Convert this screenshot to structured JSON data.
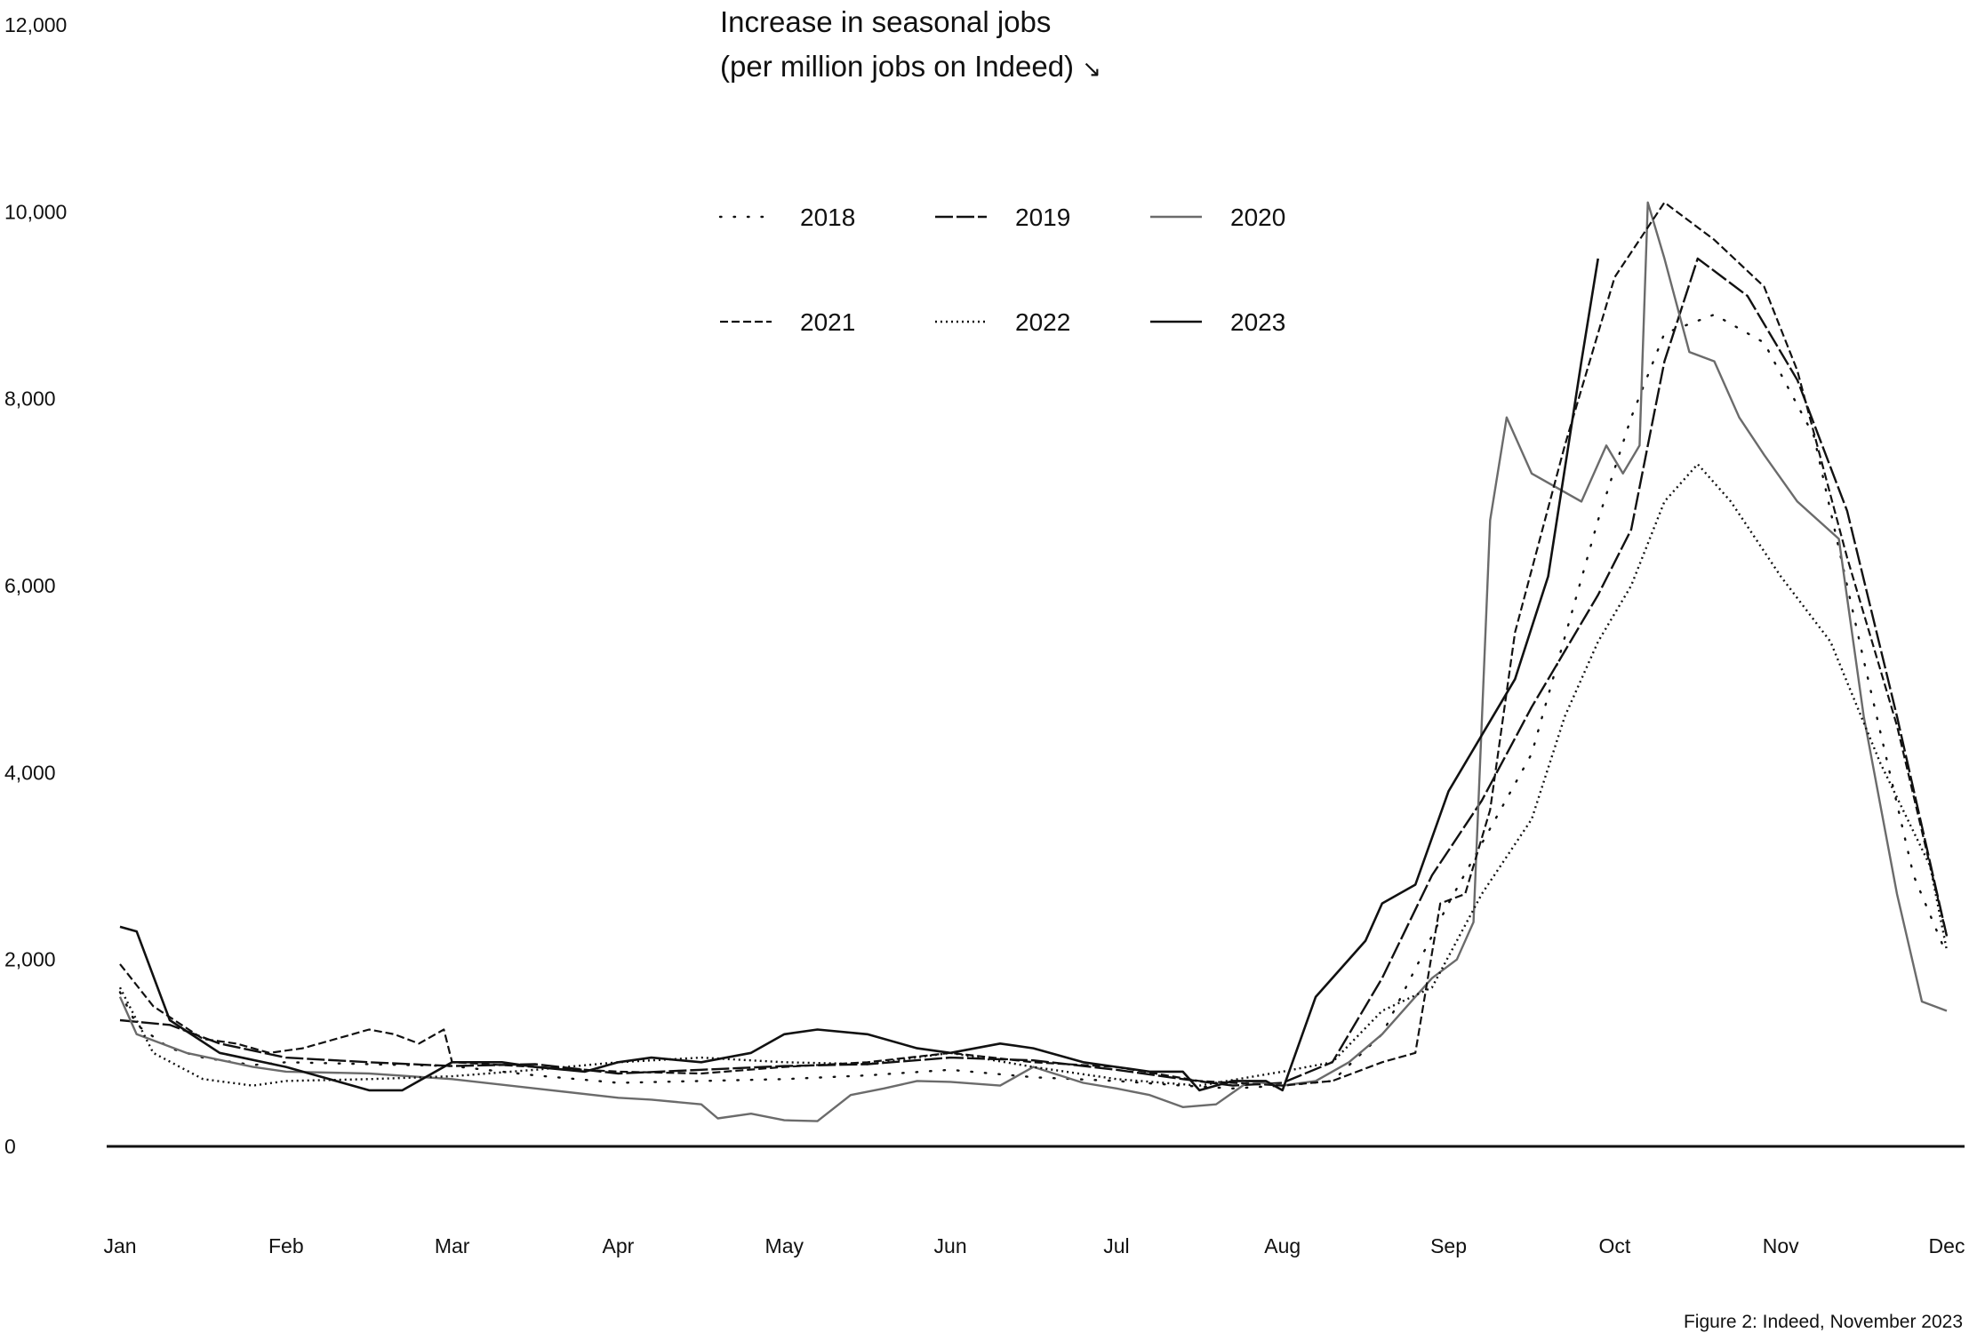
{
  "chart_data": {
    "type": "line",
    "title_line1": "Increase in seasonal jobs",
    "title_line2": "(per million jobs on Indeed)",
    "title_arrow": "↘",
    "caption": "Figure 2: Indeed, November 2023",
    "xlabel": "",
    "ylabel": "",
    "ylim": [
      0,
      12000
    ],
    "yticks": [
      "0",
      "2,000",
      "4,000",
      "6,000",
      "8,000",
      "10,000",
      "12,000"
    ],
    "ytick_values": [
      0,
      2000,
      4000,
      6000,
      8000,
      10000,
      12000
    ],
    "xlim": [
      0,
      11
    ],
    "xticks": [
      "Jan",
      "Feb",
      "Mar",
      "Apr",
      "May",
      "Jun",
      "Jul",
      "Aug",
      "Sep",
      "Oct",
      "Nov",
      "Dec"
    ],
    "xtick_values": [
      0,
      1,
      2,
      3,
      4,
      5,
      6,
      7,
      8,
      9,
      10,
      11
    ],
    "grid": false,
    "legend_placement": "top-center",
    "series": [
      {
        "name": "2018",
        "style": "sparse-dots",
        "color": "#111111",
        "x": [
          0,
          0.1,
          0.3,
          0.5,
          0.8,
          1.0,
          1.5,
          2.0,
          2.5,
          3.0,
          3.5,
          4.0,
          4.5,
          5.0,
          5.5,
          6.0,
          6.4,
          6.7,
          7.0,
          7.3,
          7.6,
          8.0,
          8.5,
          8.9,
          9.1,
          9.3,
          9.6,
          9.9,
          10.2,
          10.5,
          10.8,
          11.0
        ],
        "y": [
          1650,
          1300,
          1050,
          950,
          870,
          900,
          880,
          860,
          760,
          680,
          700,
          720,
          760,
          820,
          740,
          700,
          650,
          620,
          650,
          700,
          1200,
          2600,
          4200,
          6700,
          7800,
          8700,
          8900,
          8600,
          7600,
          5200,
          2900,
          2050
        ]
      },
      {
        "name": "2019",
        "style": "long-dash",
        "color": "#111111",
        "x": [
          0,
          0.3,
          0.6,
          1.0,
          1.5,
          2.0,
          2.5,
          3.0,
          3.5,
          4.0,
          4.5,
          5.0,
          5.5,
          6.0,
          6.4,
          6.7,
          7.0,
          7.3,
          7.6,
          7.9,
          8.2,
          8.5,
          8.9,
          9.1,
          9.3,
          9.5,
          9.8,
          10.1,
          10.4,
          10.7,
          11.0
        ],
        "y": [
          1350,
          1300,
          1100,
          950,
          900,
          860,
          880,
          780,
          820,
          860,
          880,
          950,
          920,
          820,
          720,
          650,
          680,
          900,
          1800,
          2900,
          3700,
          4700,
          5900,
          6600,
          8400,
          9500,
          9100,
          8200,
          6800,
          4600,
          2250
        ]
      },
      {
        "name": "2020",
        "style": "solid-gray",
        "color": "#6b6b6b",
        "x": [
          0,
          0.1,
          0.4,
          0.8,
          1.0,
          1.5,
          2.0,
          2.5,
          3.0,
          3.2,
          3.5,
          3.6,
          3.8,
          4.0,
          4.2,
          4.4,
          4.6,
          4.8,
          5.0,
          5.3,
          5.5,
          5.8,
          6.0,
          6.2,
          6.4,
          6.6,
          6.8,
          7.0,
          7.2,
          7.4,
          7.6,
          7.8,
          7.9,
          8.05,
          8.15,
          8.25,
          8.35,
          8.5,
          8.8,
          8.95,
          9.05,
          9.15,
          9.2,
          9.3,
          9.45,
          9.6,
          9.75,
          9.9,
          10.1,
          10.35,
          10.5,
          10.7,
          10.85,
          11.0
        ],
        "y": [
          1600,
          1200,
          1000,
          850,
          800,
          780,
          720,
          620,
          520,
          500,
          450,
          300,
          350,
          280,
          270,
          550,
          620,
          700,
          690,
          650,
          850,
          680,
          620,
          550,
          420,
          450,
          700,
          650,
          700,
          900,
          1200,
          1600,
          1800,
          2000,
          2400,
          6700,
          7800,
          7200,
          6900,
          7500,
          7200,
          7500,
          10100,
          9500,
          8500,
          8400,
          7800,
          7400,
          6900,
          6500,
          4600,
          2700,
          1550,
          1450
        ]
      },
      {
        "name": "2021",
        "style": "dash",
        "color": "#111111",
        "x": [
          0,
          0.2,
          0.5,
          0.7,
          0.9,
          1.1,
          1.3,
          1.5,
          1.65,
          1.8,
          1.95,
          2.0,
          2.5,
          3.0,
          3.5,
          4.0,
          4.5,
          5.0,
          5.5,
          6.0,
          6.5,
          7.0,
          7.3,
          7.6,
          7.8,
          7.95,
          8.1,
          8.25,
          8.4,
          8.7,
          9.0,
          9.3,
          9.6,
          9.9,
          10.1,
          10.4,
          10.7,
          11.0
        ],
        "y": [
          1950,
          1500,
          1150,
          1100,
          1000,
          1050,
          1150,
          1250,
          1200,
          1100,
          1250,
          900,
          850,
          800,
          780,
          850,
          900,
          1000,
          900,
          850,
          700,
          650,
          700,
          900,
          1000,
          2600,
          2700,
          3600,
          5500,
          7500,
          9300,
          10100,
          9700,
          9200,
          8300,
          6300,
          4500,
          2250
        ]
      },
      {
        "name": "2022",
        "style": "dotted",
        "color": "#111111",
        "x": [
          0,
          0.2,
          0.5,
          0.8,
          1.0,
          1.5,
          2.0,
          2.5,
          3.0,
          3.5,
          4.0,
          4.5,
          5.0,
          5.5,
          6.0,
          6.5,
          7.0,
          7.3,
          7.6,
          7.9,
          8.2,
          8.5,
          8.7,
          8.9,
          9.1,
          9.3,
          9.5,
          9.7,
          10.0,
          10.3,
          10.6,
          10.9,
          11.0
        ],
        "y": [
          1700,
          1000,
          720,
          650,
          700,
          720,
          750,
          820,
          900,
          950,
          900,
          880,
          1000,
          850,
          720,
          650,
          800,
          900,
          1450,
          1700,
          2700,
          3500,
          4600,
          5400,
          6000,
          6900,
          7300,
          6900,
          6100,
          5400,
          4100,
          3000,
          2100
        ]
      },
      {
        "name": "2023",
        "style": "solid",
        "color": "#111111",
        "x": [
          0,
          0.1,
          0.3,
          0.6,
          1.0,
          1.2,
          1.5,
          1.7,
          2.0,
          2.3,
          2.5,
          2.8,
          3.0,
          3.2,
          3.5,
          3.8,
          4.0,
          4.2,
          4.5,
          4.8,
          5.0,
          5.3,
          5.5,
          5.8,
          6.0,
          6.2,
          6.4,
          6.5,
          6.7,
          6.9,
          7.0,
          7.2,
          7.5,
          7.6,
          7.8,
          8.0,
          8.2,
          8.4,
          8.6,
          8.8,
          8.9
        ],
        "y": [
          2350,
          2300,
          1350,
          1000,
          850,
          750,
          600,
          600,
          900,
          900,
          850,
          800,
          900,
          950,
          900,
          1000,
          1200,
          1250,
          1200,
          1050,
          1000,
          1100,
          1050,
          900,
          850,
          800,
          800,
          600,
          700,
          700,
          600,
          1600,
          2200,
          2600,
          2800,
          3800,
          4400,
          5000,
          6100,
          8400,
          9500
        ]
      }
    ]
  }
}
